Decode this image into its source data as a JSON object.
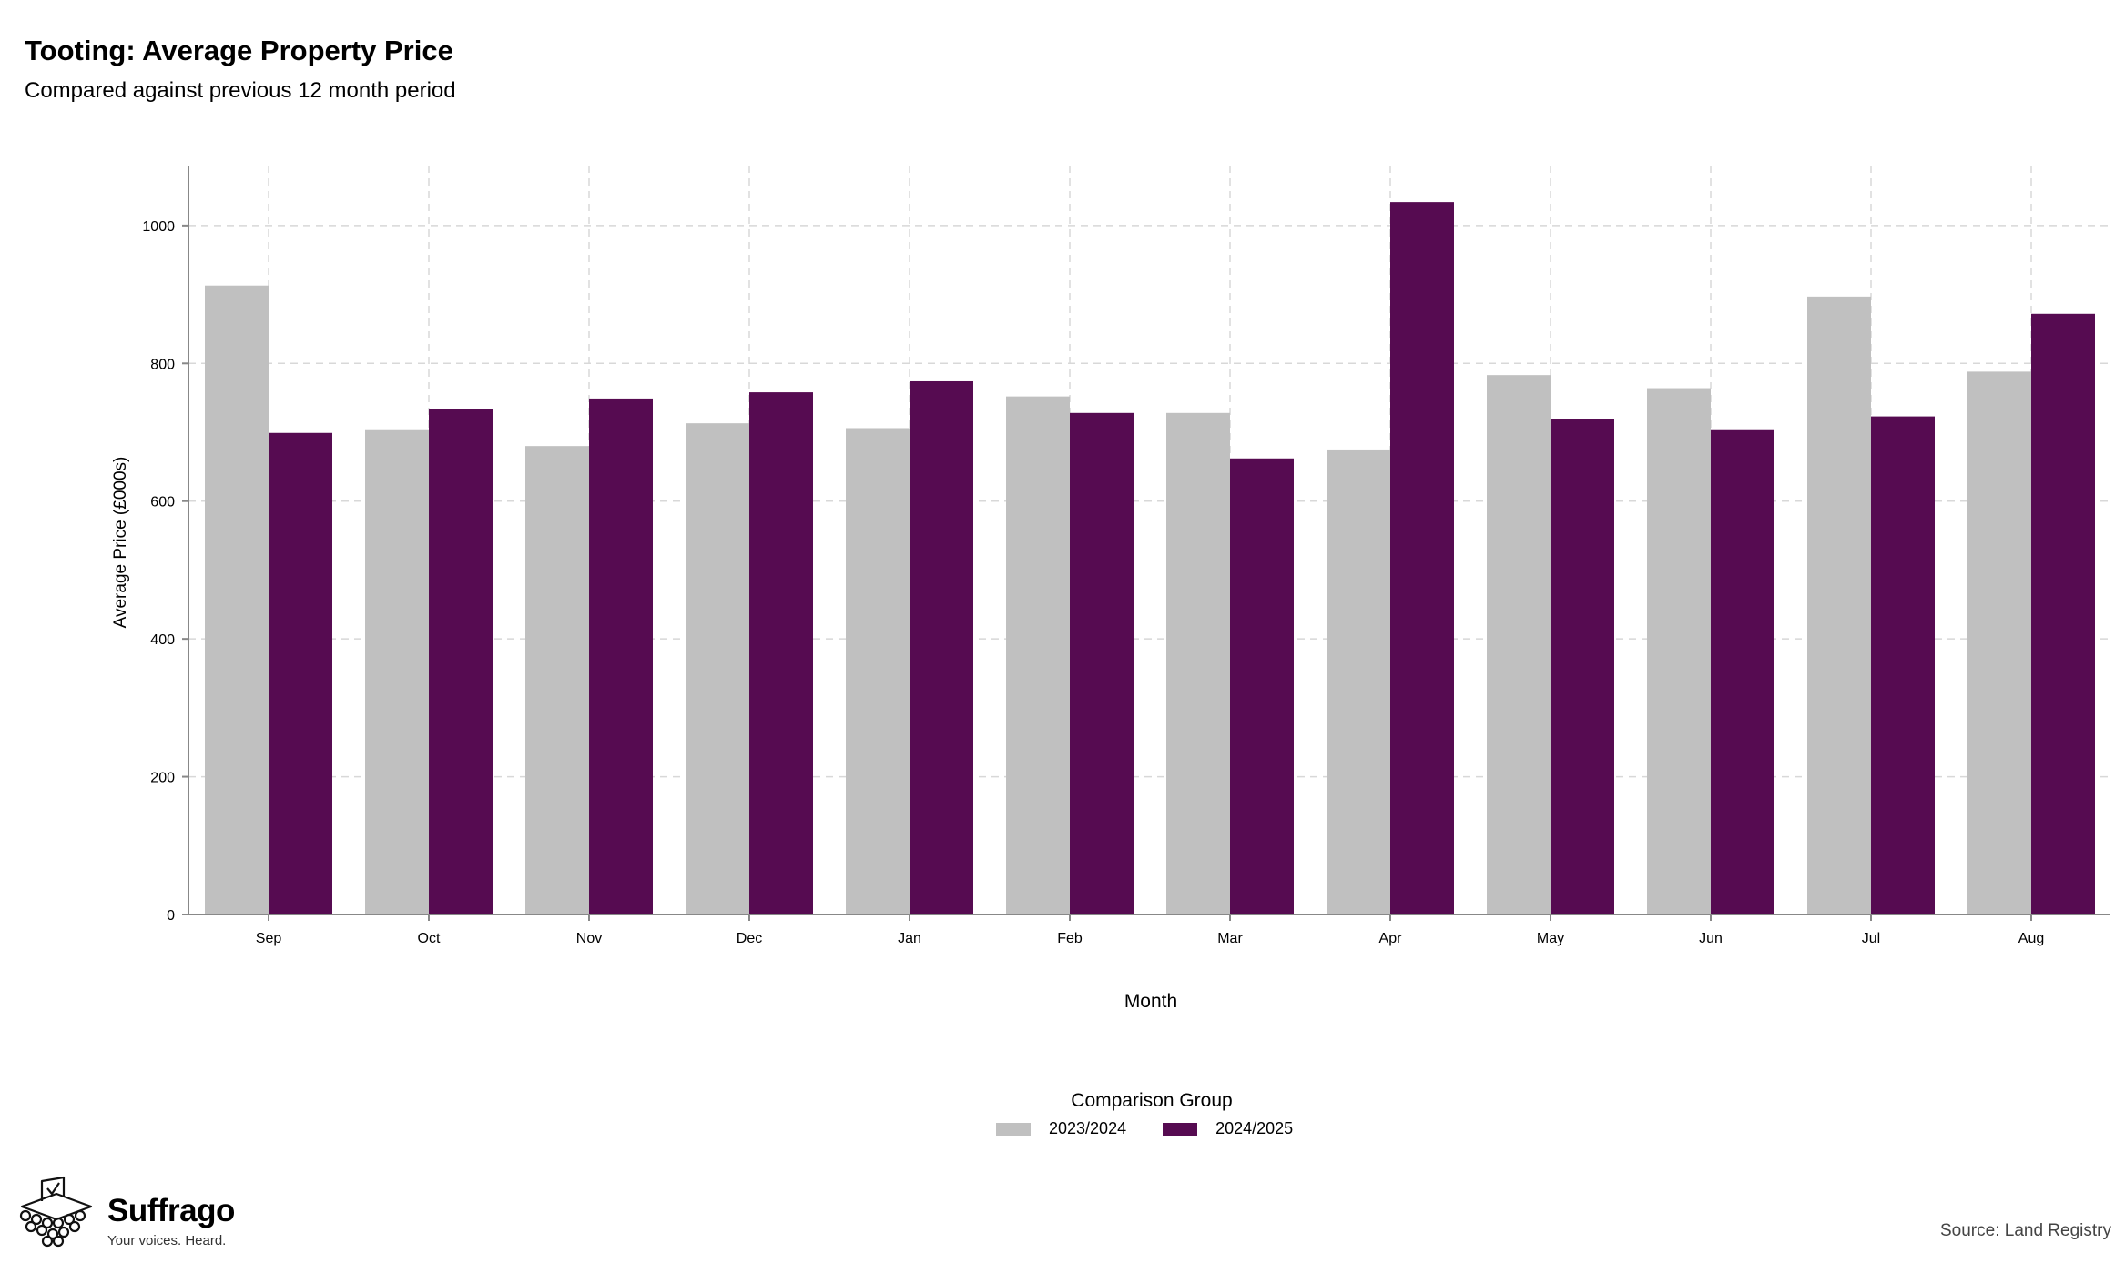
{
  "header": {
    "title": "Tooting: Average Property Price",
    "subtitle": "Compared against previous 12 month period"
  },
  "chart_data": {
    "type": "bar",
    "xlabel": "Month",
    "ylabel": "Average Price (£000s)",
    "categories": [
      "Sep",
      "Oct",
      "Nov",
      "Dec",
      "Jan",
      "Feb",
      "Mar",
      "Apr",
      "May",
      "Jun",
      "Jul",
      "Aug"
    ],
    "series": [
      {
        "name": "2023/2024",
        "color": "#c0c0c0",
        "values": [
          913,
          703,
          680,
          713,
          706,
          752,
          728,
          675,
          783,
          764,
          897,
          788
        ]
      },
      {
        "name": "2024/2025",
        "color": "#560b51",
        "values": [
          699,
          734,
          749,
          758,
          774,
          728,
          662,
          1034,
          719,
          703,
          723,
          872
        ]
      }
    ],
    "ylim": [
      0,
      1087
    ],
    "yticks": [
      0,
      200,
      400,
      600,
      800,
      1000
    ],
    "grid": true,
    "legend_position": "bottom"
  },
  "legend": {
    "title": "Comparison Group"
  },
  "branding": {
    "name": "Suffrago",
    "tagline": "Your voices. Heard.",
    "icon": "ballot-box-icon"
  },
  "footer": {
    "source": "Source: Land Registry"
  }
}
